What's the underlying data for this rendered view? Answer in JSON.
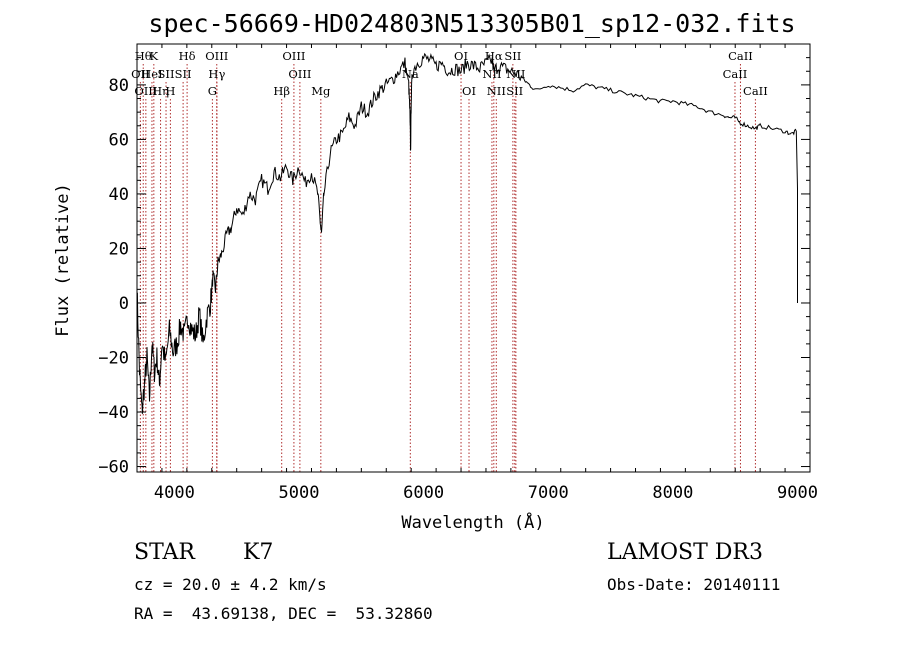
{
  "chart_data": {
    "type": "line",
    "title": "spec-56669-HD024803N513305B01_sp12-032.fits",
    "xlabel": "Wavelength (Å)",
    "ylabel": "Flux (relative)",
    "xlim": [
      3700,
      9100
    ],
    "ylim": [
      -62,
      95
    ],
    "x_ticks": [
      4000,
      5000,
      6000,
      7000,
      8000,
      9000
    ],
    "x_tick_labels": [
      "4000",
      "5000",
      "6000",
      "7000",
      "8000",
      "9000"
    ],
    "y_ticks": [
      -60,
      -40,
      -20,
      0,
      20,
      40,
      60,
      80
    ],
    "y_tick_labels": [
      "−60",
      "−40",
      "−20",
      "0",
      "20",
      "40",
      "60",
      "80"
    ],
    "line_color": "#000000",
    "marker_color": "#b03030",
    "spectrum": {
      "x": [
        3700,
        3720,
        3740,
        3760,
        3780,
        3800,
        3820,
        3840,
        3860,
        3880,
        3900,
        3930,
        3960,
        3990,
        4020,
        4050,
        4080,
        4110,
        4140,
        4170,
        4200,
        4230,
        4260,
        4290,
        4310,
        4330,
        4350,
        4380,
        4420,
        4460,
        4500,
        4550,
        4600,
        4650,
        4700,
        4750,
        4800,
        4850,
        4900,
        4950,
        5000,
        5050,
        5100,
        5150,
        5170,
        5180,
        5200,
        5250,
        5300,
        5350,
        5400,
        5450,
        5500,
        5550,
        5600,
        5650,
        5700,
        5750,
        5800,
        5850,
        5880,
        5890,
        5895,
        5900,
        5910,
        5950,
        6000,
        6050,
        6100,
        6150,
        6200,
        6250,
        6300,
        6350,
        6400,
        6450,
        6500,
        6550,
        6563,
        6600,
        6650,
        6700,
        6750,
        6800,
        6850,
        6900,
        7000,
        7100,
        7200,
        7300,
        7400,
        7500,
        7600,
        7700,
        7800,
        7900,
        8000,
        8100,
        8200,
        8300,
        8400,
        8450,
        8498,
        8542,
        8600,
        8662,
        8700,
        8800,
        8900,
        8950,
        8990,
        9000
      ],
      "y": [
        5,
        -25,
        -40,
        -30,
        -20,
        -35,
        -15,
        -25,
        -20,
        -30,
        -15,
        -22,
        -10,
        -18,
        -15,
        -8,
        -12,
        -5,
        -10,
        -12,
        -4,
        -15,
        -5,
        0,
        10,
        5,
        15,
        18,
        25,
        28,
        35,
        32,
        40,
        38,
        45,
        42,
        48,
        46,
        50,
        45,
        50,
        44,
        48,
        40,
        30,
        25,
        40,
        55,
        60,
        62,
        68,
        65,
        72,
        70,
        75,
        78,
        80,
        82,
        85,
        88,
        80,
        70,
        55,
        75,
        85,
        88,
        90,
        89,
        87,
        88,
        85,
        86,
        85,
        88,
        87,
        86,
        88,
        89,
        85,
        87,
        86,
        85,
        84,
        82,
        80,
        78,
        80,
        79,
        78,
        80,
        79,
        78,
        77,
        76,
        75,
        74,
        74,
        73,
        72,
        70,
        69,
        68,
        68,
        66,
        65,
        64,
        65,
        64,
        63,
        62,
        63,
        42
      ]
    },
    "lines": [
      {
        "x": 3750,
        "label": "Hθ",
        "row": 0
      },
      {
        "x": 3727,
        "label": "OII",
        "row": 1
      },
      {
        "x": 3771,
        "label": "OIII",
        "row": 2
      },
      {
        "x": 3835,
        "label": "K",
        "row": 0
      },
      {
        "x": 3820,
        "label": "HeI",
        "row": 1
      },
      {
        "x": 3889,
        "label": "Hη",
        "row": 2
      },
      {
        "x": 3933,
        "label": "SII",
        "row": 1
      },
      {
        "x": 3968,
        "label": "H",
        "row": 2
      },
      {
        "x": 4102,
        "label": "Hδ",
        "row": 0
      },
      {
        "x": 4070,
        "label": "SII",
        "row": 1
      },
      {
        "x": 4340,
        "label": "OIII",
        "row": 0
      },
      {
        "x": 4341,
        "label": "Hγ",
        "row": 1
      },
      {
        "x": 4305,
        "label": "G",
        "row": 2
      },
      {
        "x": 4861,
        "label": "Hβ",
        "row": 2
      },
      {
        "x": 4959,
        "label": "OIII",
        "row": 0
      },
      {
        "x": 5007,
        "label": "OIII",
        "row": 1
      },
      {
        "x": 5175,
        "label": "Mg",
        "row": 2
      },
      {
        "x": 5893,
        "label": "Na",
        "row": 1
      },
      {
        "x": 6300,
        "label": "OI",
        "row": 0
      },
      {
        "x": 6364,
        "label": "OI",
        "row": 2
      },
      {
        "x": 6548,
        "label": "NII",
        "row": 1
      },
      {
        "x": 6563,
        "label": "Hα",
        "row": 0
      },
      {
        "x": 6583,
        "label": "NII",
        "row": 2
      },
      {
        "x": 6716,
        "label": "SII",
        "row": 0
      },
      {
        "x": 6731,
        "label": "SII",
        "row": 2
      },
      {
        "x": 6740,
        "label": "NII",
        "row": 1
      },
      {
        "x": 8498,
        "label": "CaII",
        "row": 1
      },
      {
        "x": 8542,
        "label": "CaII",
        "row": 0
      },
      {
        "x": 8662,
        "label": "CaII",
        "row": 2
      }
    ]
  },
  "info": {
    "class": "STAR",
    "subclass": "K7",
    "survey": "LAMOST DR3",
    "cz": "cz = 20.0 ± 4.2 km/s",
    "obs_date": "Obs-Date: 20140111",
    "coords": "RA =  43.69138, DEC =  53.32860"
  }
}
